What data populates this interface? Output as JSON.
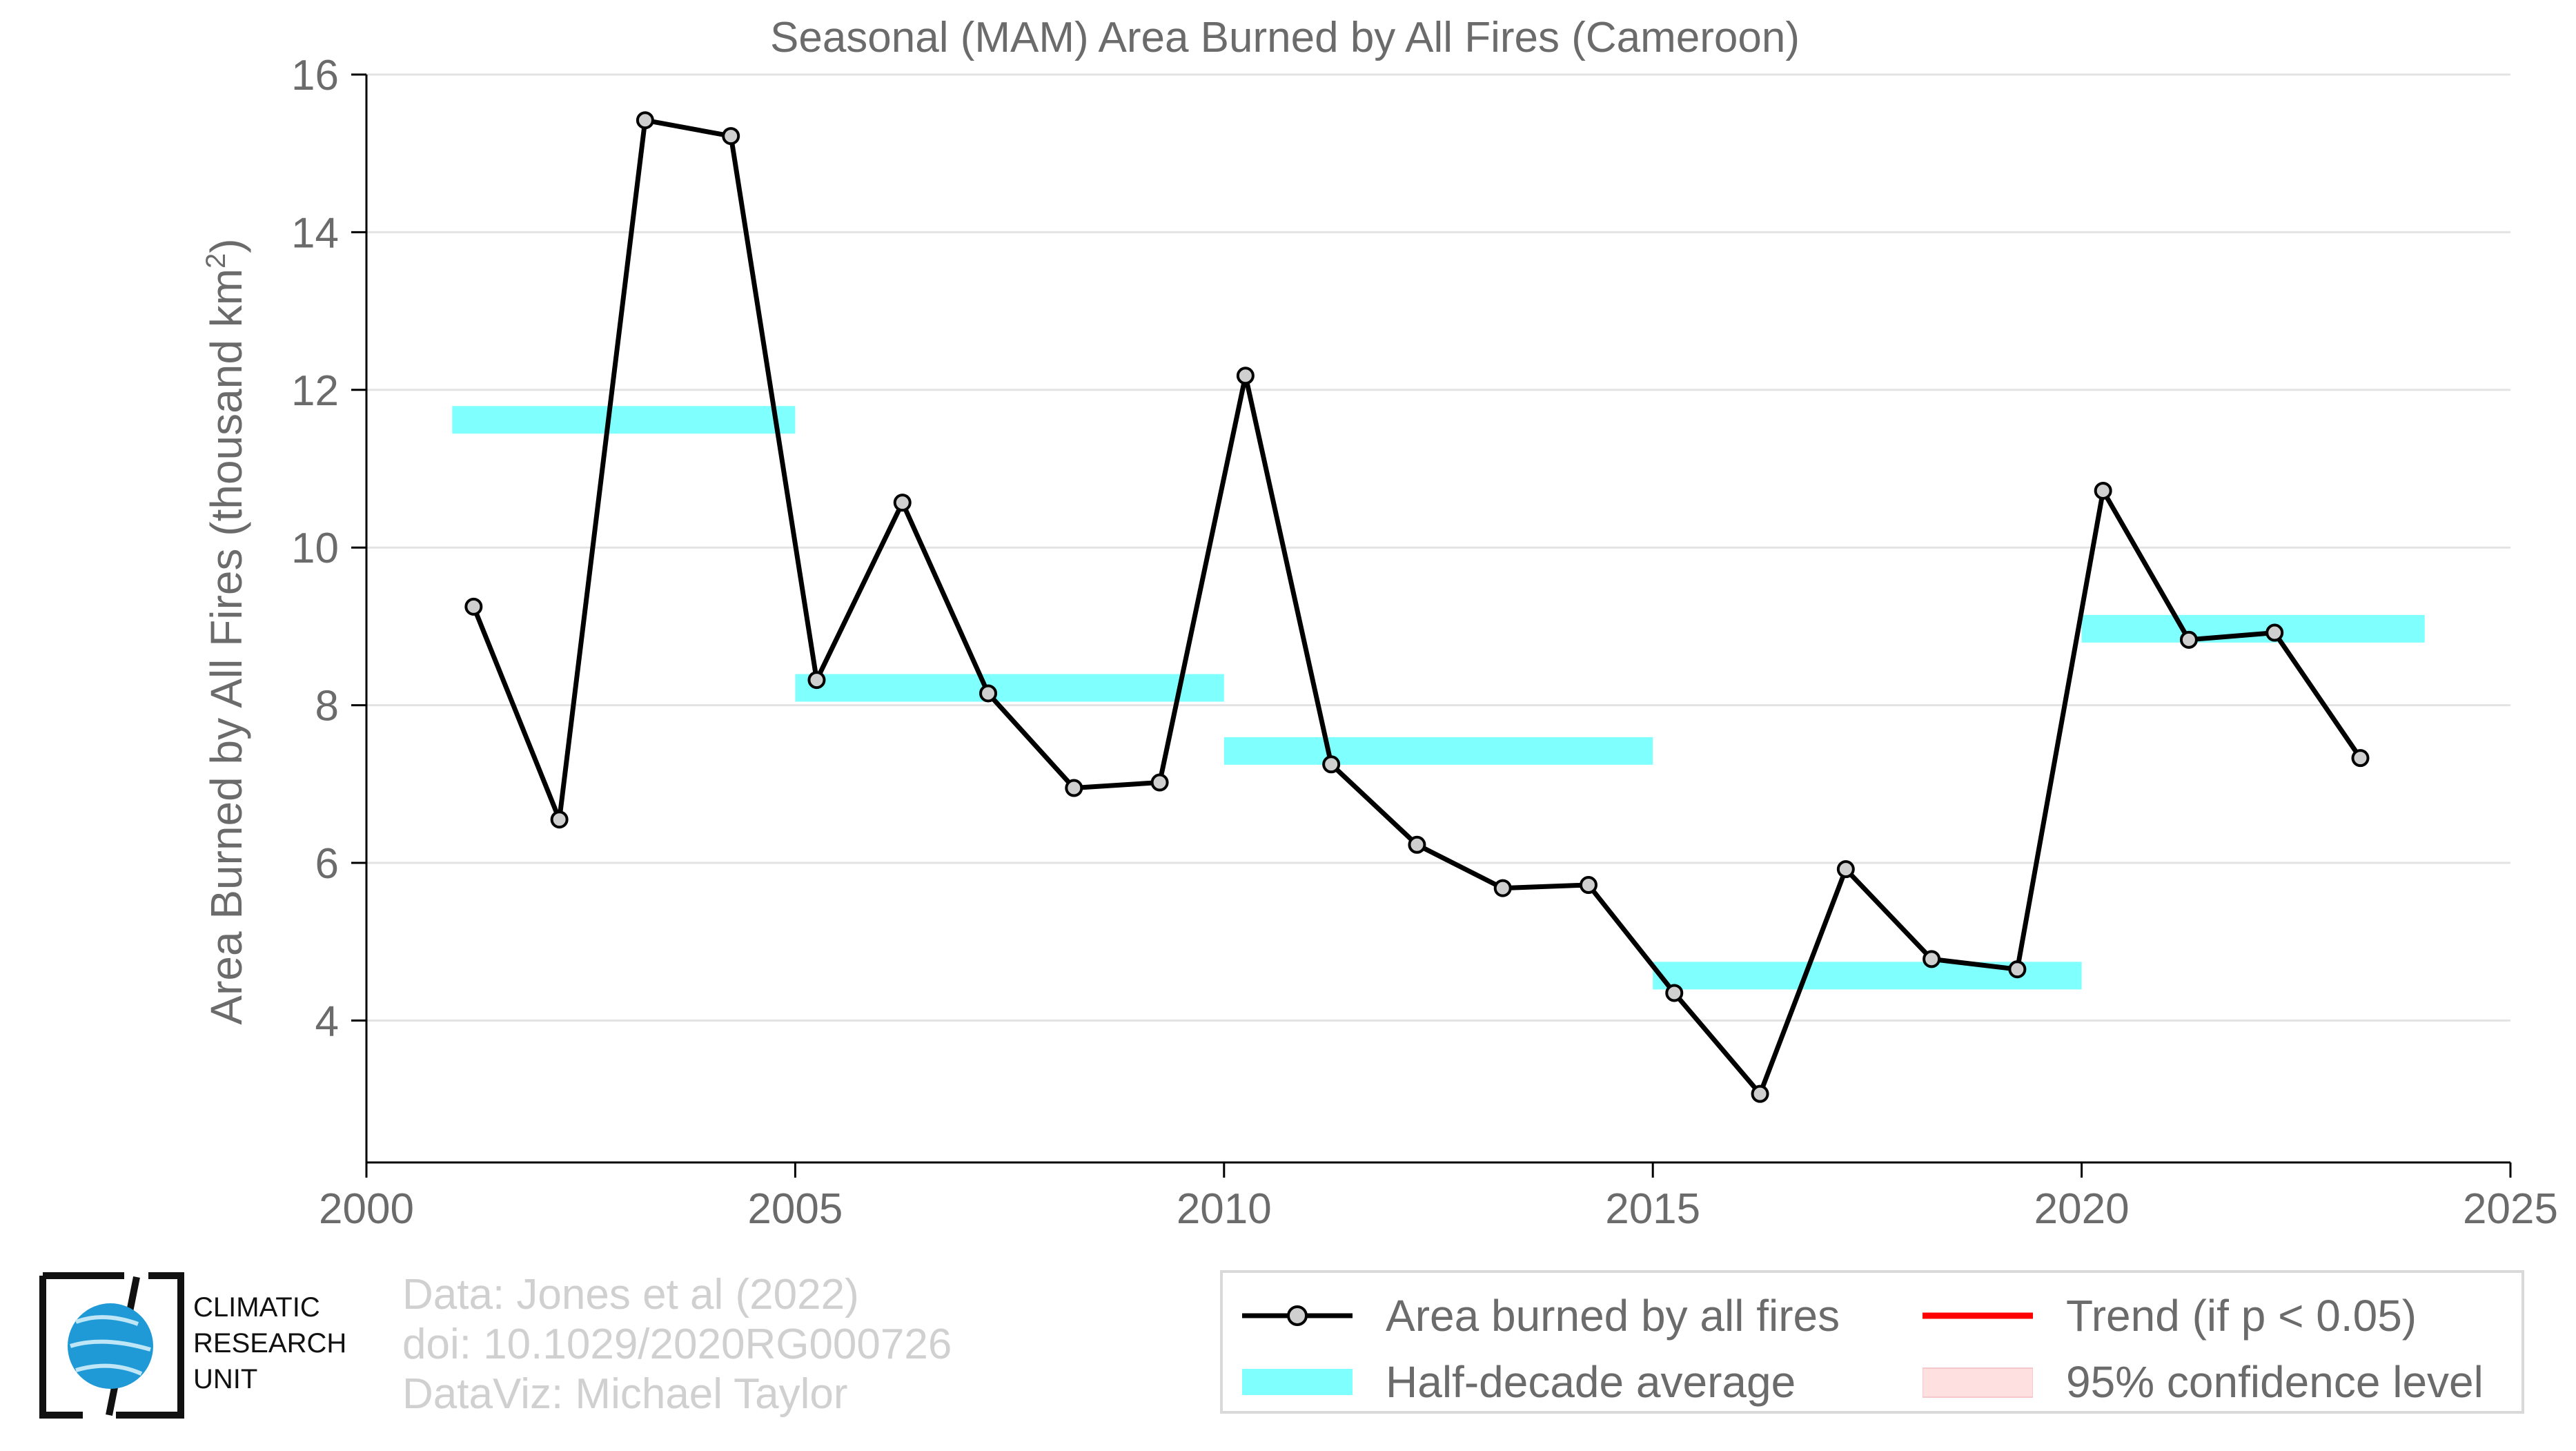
{
  "chart_data": {
    "type": "line",
    "title": "Seasonal (MAM) Area Burned by All Fires (Cameroon)",
    "ylabel": "Area Burned by All Fires (thousand km²)",
    "xlabel": "",
    "xlim": [
      2000,
      2025
    ],
    "ylim": [
      2.2,
      16
    ],
    "xticks": [
      2000,
      2005,
      2010,
      2015,
      2020,
      2025
    ],
    "yticks": [
      4,
      6,
      8,
      10,
      12,
      14,
      16
    ],
    "grid": "horizontal",
    "series": [
      {
        "name": "Area burned by all fires",
        "color": "#000000",
        "marker_color": "#cfcfcf",
        "x": [
          2001.25,
          2002.25,
          2003.25,
          2004.25,
          2005.25,
          2006.25,
          2007.25,
          2008.25,
          2009.25,
          2010.25,
          2011.25,
          2012.25,
          2013.25,
          2014.25,
          2015.25,
          2016.25,
          2017.25,
          2018.25,
          2019.25,
          2020.25,
          2021.25,
          2022.25,
          2023.25
        ],
        "y": [
          9.25,
          6.55,
          15.42,
          15.22,
          8.32,
          10.57,
          8.15,
          6.95,
          7.02,
          12.18,
          7.25,
          6.23,
          5.68,
          5.72,
          4.35,
          3.07,
          5.92,
          4.78,
          4.65,
          10.72,
          8.83,
          8.92,
          7.33
        ]
      }
    ],
    "half_decade_averages": {
      "name": "Half-decade average",
      "color": "#80ffff",
      "segments": [
        {
          "x0": 2001,
          "x1": 2005,
          "y": 11.62
        },
        {
          "x0": 2005,
          "x1": 2010,
          "y": 8.22
        },
        {
          "x0": 2010,
          "x1": 2015,
          "y": 7.42
        },
        {
          "x0": 2015,
          "x1": 2020,
          "y": 4.57
        },
        {
          "x0": 2020,
          "x1": 2024,
          "y": 8.97
        }
      ]
    },
    "legend": {
      "placement": "bottom-right",
      "entries": [
        {
          "label": "Area burned by all fires",
          "kind": "line-marker",
          "color": "#000000"
        },
        {
          "label": "Trend (if p < 0.05)",
          "kind": "line",
          "color": "#ff0000"
        },
        {
          "label": "Half-decade average",
          "kind": "band",
          "color": "#80ffff"
        },
        {
          "label": "95% confidence level",
          "kind": "patch",
          "color": "#ffe0e0"
        }
      ]
    }
  },
  "credits": {
    "line1": "Data: Jones et al (2022)",
    "line2": "doi: 10.1029/2020RG000726",
    "line3": "DataViz: Michael Taylor"
  },
  "logo": {
    "line1": "CLIMATIC",
    "line2": "RESEARCH",
    "line3": "UNIT"
  }
}
